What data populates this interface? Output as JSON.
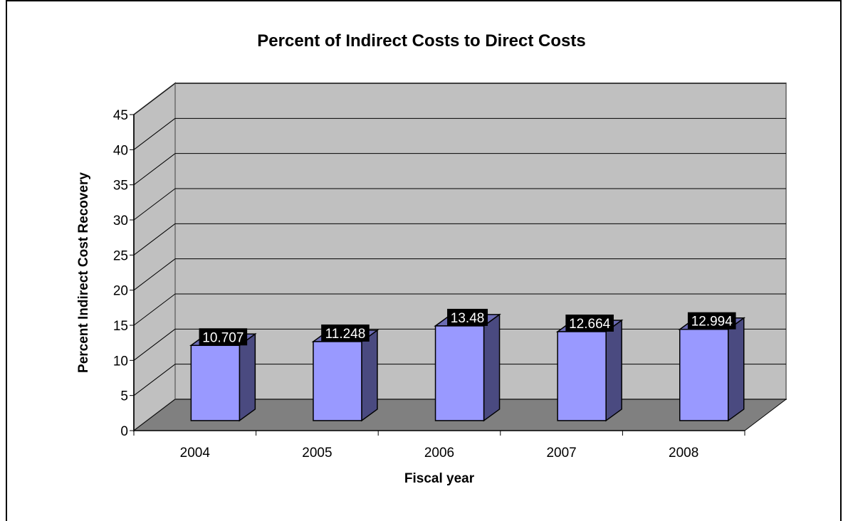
{
  "chart_data": {
    "type": "bar",
    "title": "Percent of Indirect Costs to Direct Costs",
    "xlabel": "Fiscal year",
    "ylabel": "Percent Indirect Cost Recovery",
    "categories": [
      "2004",
      "2005",
      "2006",
      "2007",
      "2008"
    ],
    "values": [
      10.707,
      11.248,
      13.48,
      12.664,
      12.994
    ],
    "value_labels": [
      "10.707",
      "11.248",
      "13.48",
      "12.664",
      "12.994"
    ],
    "ylim": [
      0,
      45
    ],
    "yticks": [
      "0",
      "5",
      "10",
      "15",
      "20",
      "25",
      "30",
      "35",
      "40",
      "45"
    ],
    "grid": true,
    "legend": "none",
    "style": "3d-column",
    "colors": {
      "bar_front": "#9999ff",
      "bar_side": "#4a4a80",
      "bar_top": "#6b6bb3",
      "wall": "#c0c0c0",
      "floor": "#808080",
      "label_bg": "#000000",
      "label_text": "#ffffff"
    }
  }
}
